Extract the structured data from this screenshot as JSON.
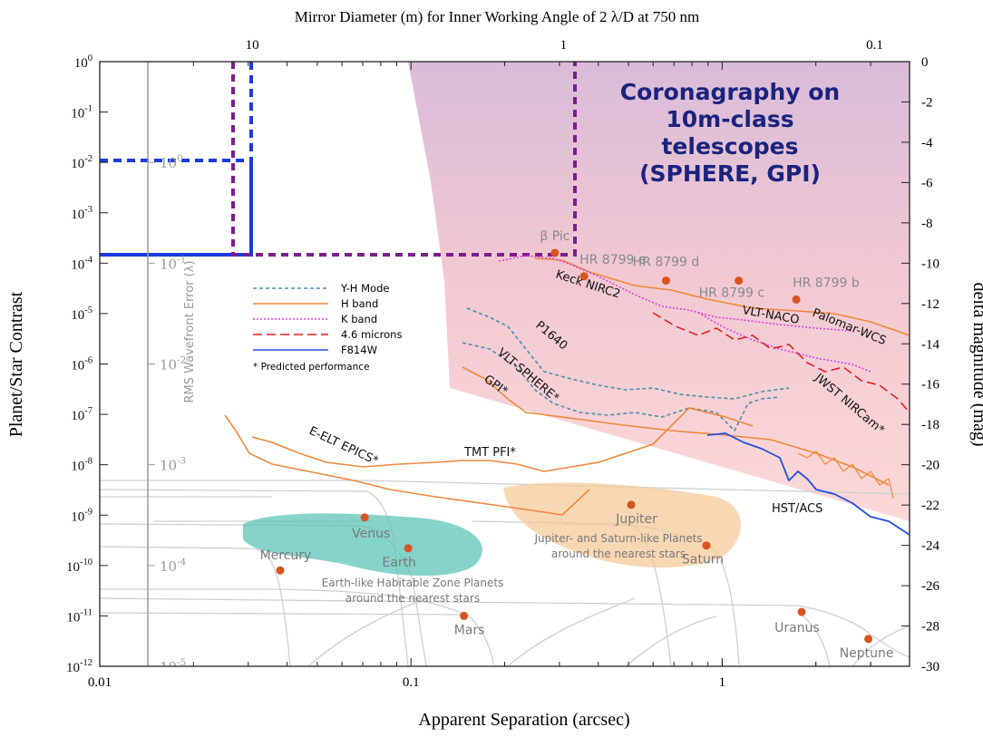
{
  "chart_data": {
    "type": "line",
    "title": "Mirror Diameter (m) for Inner Working Angle of 2 λ/D at 750 nm",
    "xlabel": "Apparent Separation (arcsec)",
    "ylabel": "Planet/Star Contrast",
    "y2label": "delta magnitude (mag)",
    "rms_label": "RMS Wavefront Error (λ)",
    "x_scale": "log",
    "y_scale": "log",
    "xlim": [
      0.01,
      4
    ],
    "ylim": [
      1e-12,
      1
    ],
    "x_ticks": [
      {
        "v": 0.01,
        "label": "0.01"
      },
      {
        "v": 0.1,
        "label": "0.1"
      },
      {
        "v": 1,
        "label": "1"
      }
    ],
    "y_ticks": [
      {
        "exp": 0,
        "label": "10",
        "sup": "0"
      },
      {
        "exp": -1,
        "label": "10",
        "sup": "-1"
      },
      {
        "exp": -2,
        "label": "10",
        "sup": "-2"
      },
      {
        "exp": -3,
        "label": "10",
        "sup": "-3"
      },
      {
        "exp": -4,
        "label": "10",
        "sup": "-4"
      },
      {
        "exp": -5,
        "label": "10",
        "sup": "-5"
      },
      {
        "exp": -6,
        "label": "10",
        "sup": "-6"
      },
      {
        "exp": -7,
        "label": "10",
        "sup": "-7"
      },
      {
        "exp": -8,
        "label": "10",
        "sup": "-8"
      },
      {
        "exp": -9,
        "label": "10",
        "sup": "-9"
      },
      {
        "exp": -10,
        "label": "10",
        "sup": "-10"
      },
      {
        "exp": -11,
        "label": "10",
        "sup": "-11"
      },
      {
        "exp": -12,
        "label": "10",
        "sup": "-12"
      }
    ],
    "top_ticks": [
      {
        "x": 0.0309,
        "label": "10"
      },
      {
        "x": 0.309,
        "label": "1"
      },
      {
        "x": 3.09,
        "label": "0.1"
      }
    ],
    "mag_ticks": [
      "0",
      "-2",
      "-4",
      "-6",
      "-8",
      "-10",
      "-12",
      "-14",
      "-16",
      "-18",
      "-20",
      "-22",
      "-24",
      "-26",
      "-28",
      "-30"
    ],
    "rms_ticks": [
      {
        "exp": -2,
        "label": "10",
        "sup": "0"
      },
      {
        "exp": -4,
        "label": "10",
        "sup": "-1"
      },
      {
        "exp": -6,
        "label": "10",
        "sup": "-2"
      },
      {
        "exp": -8,
        "label": "10",
        "sup": "-3"
      },
      {
        "exp": -10,
        "label": "10",
        "sup": "-4"
      },
      {
        "exp": -12,
        "label": "10",
        "sup": "-5"
      }
    ],
    "annotation": {
      "lines": [
        "Coronagraphy on",
        "10m-class",
        "telescopes",
        "(SPHERE, GPI)"
      ],
      "color": "#1a237e"
    },
    "legend": {
      "placement": "upper-left",
      "entries": [
        {
          "name": "Y-H Mode",
          "color": "#4a90a4",
          "dash": "4,3"
        },
        {
          "name": "H band",
          "color": "#f0883a",
          "dash": ""
        },
        {
          "name": "K band",
          "color": "#e040e0",
          "dash": "2,2"
        },
        {
          "name": "4.6 microns",
          "color": "#e02020",
          "dash": "10,5"
        },
        {
          "name": "F814W",
          "color": "#2050e0",
          "dash": ""
        }
      ],
      "note": "* Predicted performance"
    },
    "regions": [
      {
        "name": "Earth-like Habitable Zone Planets",
        "label_lines": [
          "Earth-like Habitable Zone Planets",
          "around the nearest stars"
        ],
        "color": "#5ec4b8"
      },
      {
        "name": "Jupiter- and Saturn-like Planets",
        "label_lines": [
          "Jupiter- and Saturn-like Planets",
          "around the nearest stars"
        ],
        "color": "#f5c99a"
      }
    ],
    "points": [
      {
        "name": "β Pic",
        "x": 0.29,
        "y": 0.00016
      },
      {
        "name": "HR 8799 e",
        "x": 0.36,
        "y": 5.5e-05
      },
      {
        "name": "HR 8799 d",
        "x": 0.66,
        "y": 4.5e-05
      },
      {
        "name": "HR 8799 c",
        "x": 1.13,
        "y": 4.5e-05
      },
      {
        "name": "HR 8799 b",
        "x": 1.73,
        "y": 1.9e-05
      },
      {
        "name": "Venus",
        "x": 0.071,
        "y": 9e-10
      },
      {
        "name": "Earth",
        "x": 0.098,
        "y": 2.2e-10
      },
      {
        "name": "Mercury",
        "x": 0.038,
        "y": 8e-11
      },
      {
        "name": "Mars",
        "x": 0.148,
        "y": 1e-11
      },
      {
        "name": "Jupiter",
        "x": 0.51,
        "y": 1.6e-09
      },
      {
        "name": "Saturn",
        "x": 0.89,
        "y": 2.5e-10
      },
      {
        "name": "Uranus",
        "x": 1.8,
        "y": 1.2e-11
      },
      {
        "name": "Neptune",
        "x": 2.95,
        "y": 3.5e-12
      }
    ],
    "curve_labels": [
      {
        "name": "Keck NIRC2"
      },
      {
        "name": "Palomar-WCS"
      },
      {
        "name": "VLT-NACO"
      },
      {
        "name": "P1640"
      },
      {
        "name": "VLT-SPHERE*"
      },
      {
        "name": "GPI*"
      },
      {
        "name": "JWST NIRCam*"
      },
      {
        "name": "E-ELT EPICS*"
      },
      {
        "name": "TMT PFI*"
      },
      {
        "name": "HST/ACS"
      }
    ]
  }
}
